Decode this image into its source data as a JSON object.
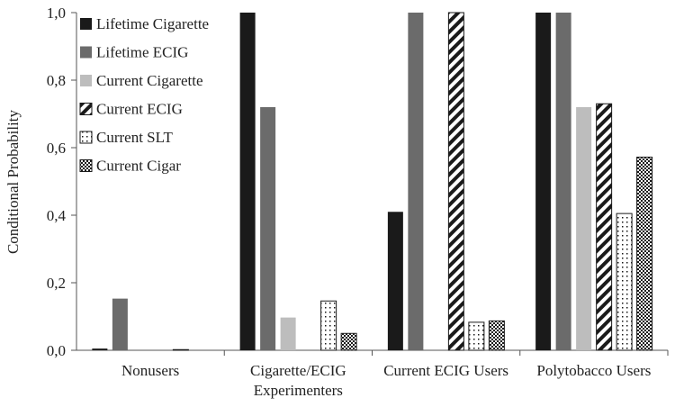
{
  "chart_data": {
    "type": "bar",
    "ylabel": "Conditional Probability",
    "xlabel": "",
    "ylim": [
      0,
      1
    ],
    "yticks": [
      "0,0",
      "0,2",
      "0,4",
      "0,6",
      "0,8",
      "1,0"
    ],
    "categories": [
      [
        "Nonusers"
      ],
      [
        "Cigarette/ECIG",
        "Experimenters"
      ],
      [
        "Current ECIG Users"
      ],
      [
        "Polytobacco Users"
      ]
    ],
    "series": [
      {
        "name": "Lifetime Cigarette",
        "pattern": "solid-black",
        "values": [
          0.005,
          1.0,
          0.41,
          1.0
        ]
      },
      {
        "name": "Lifetime ECIG",
        "pattern": "solid-darkgray",
        "values": [
          0.153,
          0.72,
          1.0,
          1.0
        ]
      },
      {
        "name": "Current Cigarette",
        "pattern": "solid-lightgray",
        "values": [
          0.0,
          0.097,
          0.0,
          0.72
        ]
      },
      {
        "name": "Current ECIG",
        "pattern": "diagonal-stripes",
        "values": [
          0.0,
          0.0,
          1.0,
          0.73
        ]
      },
      {
        "name": "Current SLT",
        "pattern": "dots",
        "values": [
          0.002,
          0.146,
          0.083,
          0.405
        ]
      },
      {
        "name": "Current Cigar",
        "pattern": "checker",
        "values": [
          0.0,
          0.05,
          0.087,
          0.572
        ]
      }
    ],
    "legend_position": "top-left",
    "grid": false,
    "colors": {
      "black": "#1a1a1a",
      "darkgray": "#6b6b6b",
      "lightgray": "#bdbdbd"
    }
  }
}
